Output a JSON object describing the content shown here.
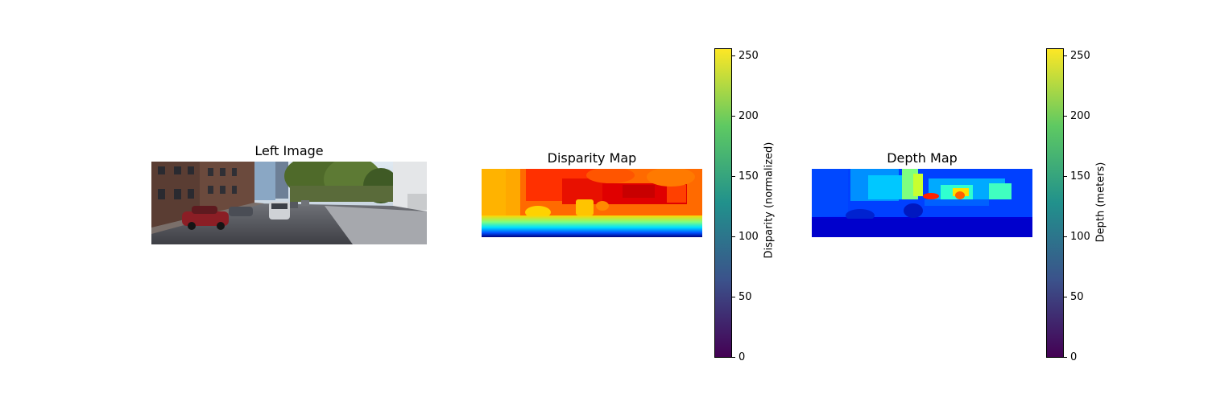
{
  "panels": {
    "left_title": "Left Image",
    "disparity_title": "Disparity Map",
    "depth_title": "Depth Map"
  },
  "colors": {
    "viridis_stops": [
      "#440154",
      "#3b528b",
      "#21918c",
      "#5ec962",
      "#fde725"
    ],
    "jet_stops": [
      "#00007f",
      "#0000ff",
      "#00ffff",
      "#ffff00",
      "#ff0000",
      "#7f0000"
    ]
  },
  "chart_data": [
    {
      "type": "heatmap",
      "title": "Disparity Map",
      "colorbar": {
        "label": "Disparity (normalized)",
        "range": [
          0,
          255
        ],
        "ticks": [
          0,
          50,
          100,
          150,
          200,
          250
        ],
        "colormap": "viridis"
      },
      "image_colormap": "jet"
    },
    {
      "type": "heatmap",
      "title": "Depth Map",
      "colorbar": {
        "label": "Depth (meters)",
        "range": [
          0,
          255
        ],
        "ticks": [
          0,
          50,
          100,
          150,
          200,
          250
        ],
        "colormap": "viridis"
      },
      "image_colormap": "jet"
    }
  ]
}
